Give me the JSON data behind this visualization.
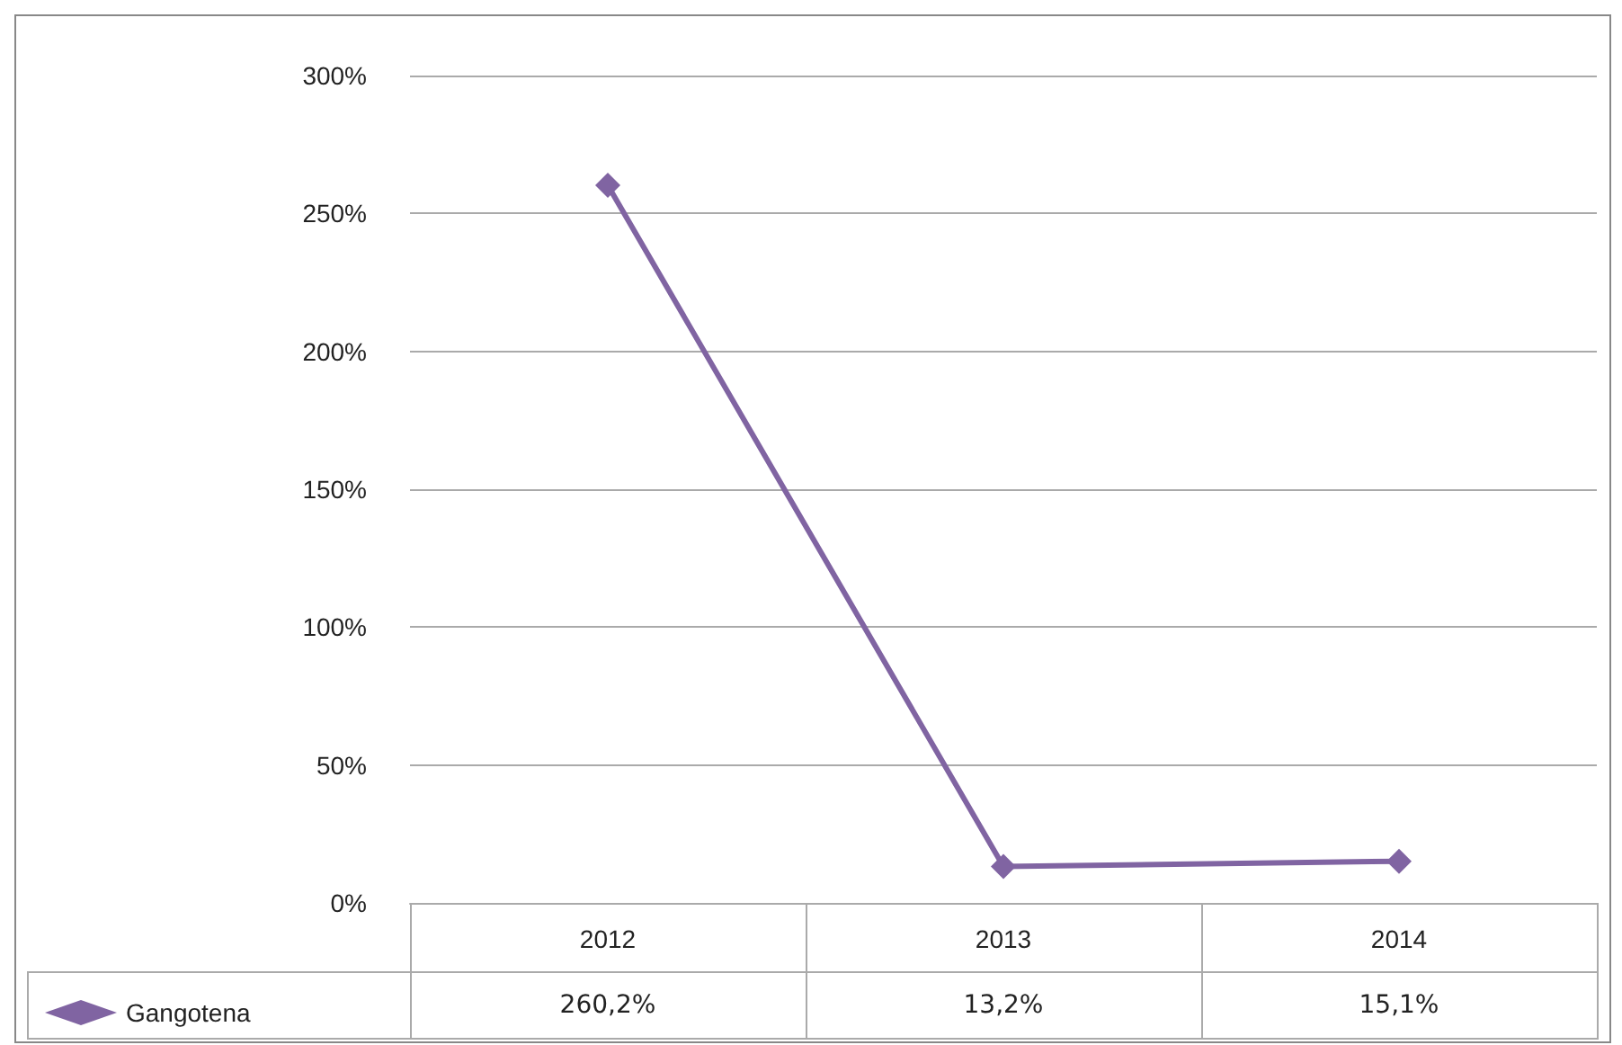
{
  "chart_data": {
    "type": "line",
    "categories": [
      "2012",
      "2013",
      "2014"
    ],
    "series": [
      {
        "name": "Gangotena",
        "color": "#8064a2",
        "values": [
          260.2,
          13.2,
          15.1
        ],
        "value_labels": [
          "260,2%",
          "13,2%",
          "15,1%"
        ]
      }
    ],
    "ylim": [
      0,
      300
    ],
    "yticks": [
      {
        "value": 0,
        "label": "0%"
      },
      {
        "value": 50,
        "label": "50%"
      },
      {
        "value": 100,
        "label": "100%"
      },
      {
        "value": 150,
        "label": "150%"
      },
      {
        "value": 200,
        "label": "200%"
      },
      {
        "value": 250,
        "label": "250%"
      },
      {
        "value": 300,
        "label": "300%"
      }
    ],
    "grid": "y",
    "marker": "diamond",
    "line_style": "solid",
    "legend": "bottom left"
  }
}
